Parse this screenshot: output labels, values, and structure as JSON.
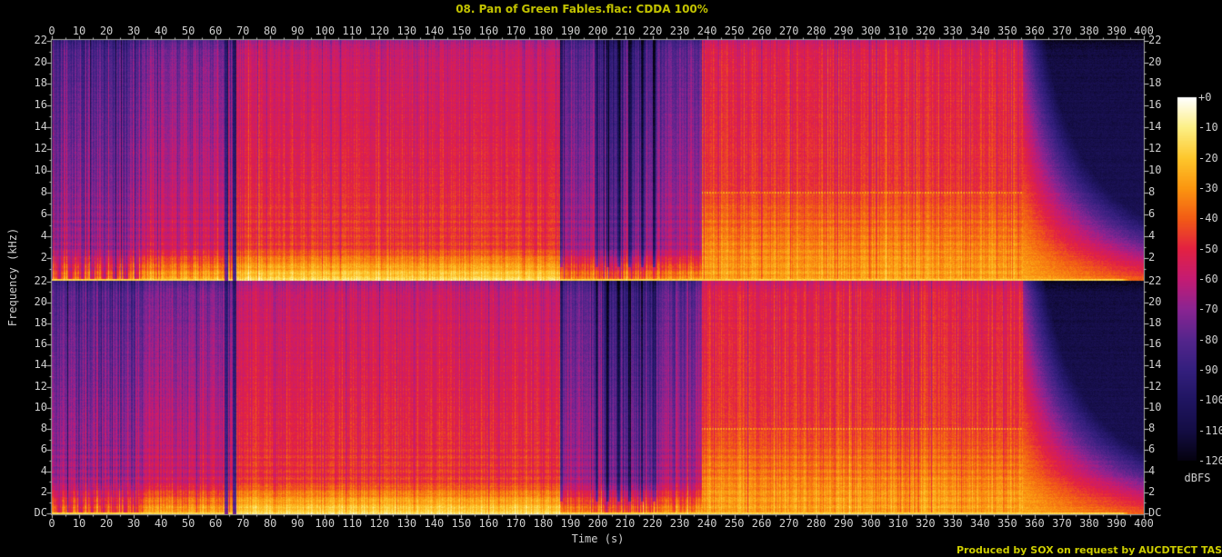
{
  "title": "08. Pan of Green Fables.flac: CDDA 100%",
  "credit": "Produced by SOX on request by AUCDTECT TASK MANAGER",
  "axis_labels": {
    "x": "Time (s)",
    "y": "Frequency (kHz)",
    "colorbar": "dBFS"
  },
  "time_tick_labels": [
    "0",
    "10",
    "20",
    "30",
    "40",
    "50",
    "60",
    "70",
    "80",
    "90",
    "100",
    "110",
    "120",
    "130",
    "140",
    "150",
    "160",
    "170",
    "180",
    "190",
    "200",
    "210",
    "220",
    "230",
    "240",
    "250",
    "260",
    "270",
    "280",
    "290",
    "300",
    "310",
    "320",
    "330",
    "340",
    "350",
    "360",
    "370",
    "380",
    "390",
    "400"
  ],
  "freq_tick_labels": [
    "22",
    "20",
    "18",
    "16",
    "14",
    "12",
    "10",
    "8",
    "6",
    "4",
    "2"
  ],
  "dc_label": "DC",
  "colorbar_tick_labels": [
    "+0",
    "-10",
    "-20",
    "-30",
    "-40",
    "-50",
    "-60",
    "-70",
    "-80",
    "-90",
    "-100",
    "-110",
    "-120"
  ],
  "colors": {
    "annotation_yellow": "#c3c300",
    "tick_text": "#cfcfcf",
    "plot_border": "#a8a8a8",
    "background": "#000000"
  },
  "chart_data": {
    "type": "heatmap",
    "subtype": "stereo-audio-spectrogram",
    "title": "08. Pan of Green Fables.flac: CDDA 100%",
    "channels": 2,
    "x": {
      "label": "Time (s)",
      "min": 0,
      "max": 400,
      "major_tick_step": 10,
      "minor_tick_step": 5
    },
    "y": {
      "label": "Frequency (kHz)",
      "min": 0,
      "max": 22.05,
      "major_tick_step_khz": 2,
      "minor_tick_step_khz": 1,
      "dc_label": "DC"
    },
    "z": {
      "label": "dBFS",
      "min": -120,
      "max": 0,
      "tick_step": 10
    },
    "legend_position": "right-colorbar",
    "grid": false,
    "palette_stops": [
      {
        "t": 0.0,
        "color": "#050210"
      },
      {
        "t": 0.083,
        "color": "#140d45"
      },
      {
        "t": 0.167,
        "color": "#201562"
      },
      {
        "t": 0.25,
        "color": "#341f7e"
      },
      {
        "t": 0.333,
        "color": "#55258c"
      },
      {
        "t": 0.417,
        "color": "#8b2492"
      },
      {
        "t": 0.5,
        "color": "#c51b73"
      },
      {
        "t": 0.583,
        "color": "#e32142"
      },
      {
        "t": 0.667,
        "color": "#f25c15"
      },
      {
        "t": 0.75,
        "color": "#fb9610"
      },
      {
        "t": 0.833,
        "color": "#fdc72c"
      },
      {
        "t": 0.917,
        "color": "#fcef85"
      },
      {
        "t": 1.0,
        "color": "#ffffff"
      }
    ],
    "segments": [
      {
        "t0": 0,
        "t1": 33,
        "kind": "blocks",
        "base": -63,
        "slope": 0.9,
        "stripe": 10,
        "coljit": 7,
        "lowboost": 30
      },
      {
        "t0": 33,
        "t1": 63.2,
        "kind": "std",
        "base": -53,
        "slope": 0.95,
        "stripe": 7,
        "coljit": 4,
        "lowboost": 30
      },
      {
        "t0": 63.2,
        "t1": 64.3,
        "kind": "std",
        "base": -86,
        "slope": 0.5,
        "stripe": 5,
        "coljit": 3,
        "lowboost": 12,
        "dark": true
      },
      {
        "t0": 64.3,
        "t1": 66.1,
        "kind": "std",
        "base": -53,
        "slope": 0.95,
        "stripe": 7,
        "coljit": 4,
        "lowboost": 30
      },
      {
        "t0": 66.1,
        "t1": 67.5,
        "kind": "std",
        "base": -90,
        "slope": 0.45,
        "stripe": 5,
        "coljit": 3,
        "lowboost": 10,
        "dark": true
      },
      {
        "t0": 67.5,
        "t1": 186,
        "kind": "std",
        "base": -44,
        "slope": 0.7,
        "stripe": 5,
        "coljit": 3.5,
        "lowboost": 30
      },
      {
        "t0": 186,
        "t1": 201,
        "kind": "std",
        "base": -63,
        "slope": 0.8,
        "stripe": 8,
        "coljit": 5,
        "lowboost": 32
      },
      {
        "t0": 201,
        "t1": 222,
        "kind": "std",
        "base": -71,
        "slope": 0.9,
        "stripe": 13,
        "coljit": 9,
        "lowboost": 36
      },
      {
        "t0": 222,
        "t1": 238,
        "kind": "std",
        "base": -61,
        "slope": 0.85,
        "stripe": 8,
        "coljit": 5,
        "lowboost": 32
      },
      {
        "t0": 238,
        "t1": 355.5,
        "kind": "hot",
        "baseHigh": -46,
        "slopeHigh": 0.45,
        "baseLow": -26,
        "slopeLow": 2.25,
        "stripe": 5,
        "coljit": 4
      },
      {
        "t0": 355.5,
        "t1": 400.5,
        "kind": "fade",
        "bg": -104,
        "bgSlope": 0.3,
        "tail": -26,
        "tailSlope": 2.0,
        "decay": 0.3,
        "decayF": 0.21
      }
    ],
    "events": {
      "dotted_line_khz": 8.05,
      "music_end_s": 355.5,
      "dark_gaps_s": [
        [
          63.2,
          64.3
        ],
        [
          66.1,
          67.5
        ]
      ],
      "dark_columns_s": [
        186.6,
        199.5,
        203.5,
        207.5,
        211.5,
        216,
        220.5
      ],
      "dc_line_end_s": 392
    }
  }
}
